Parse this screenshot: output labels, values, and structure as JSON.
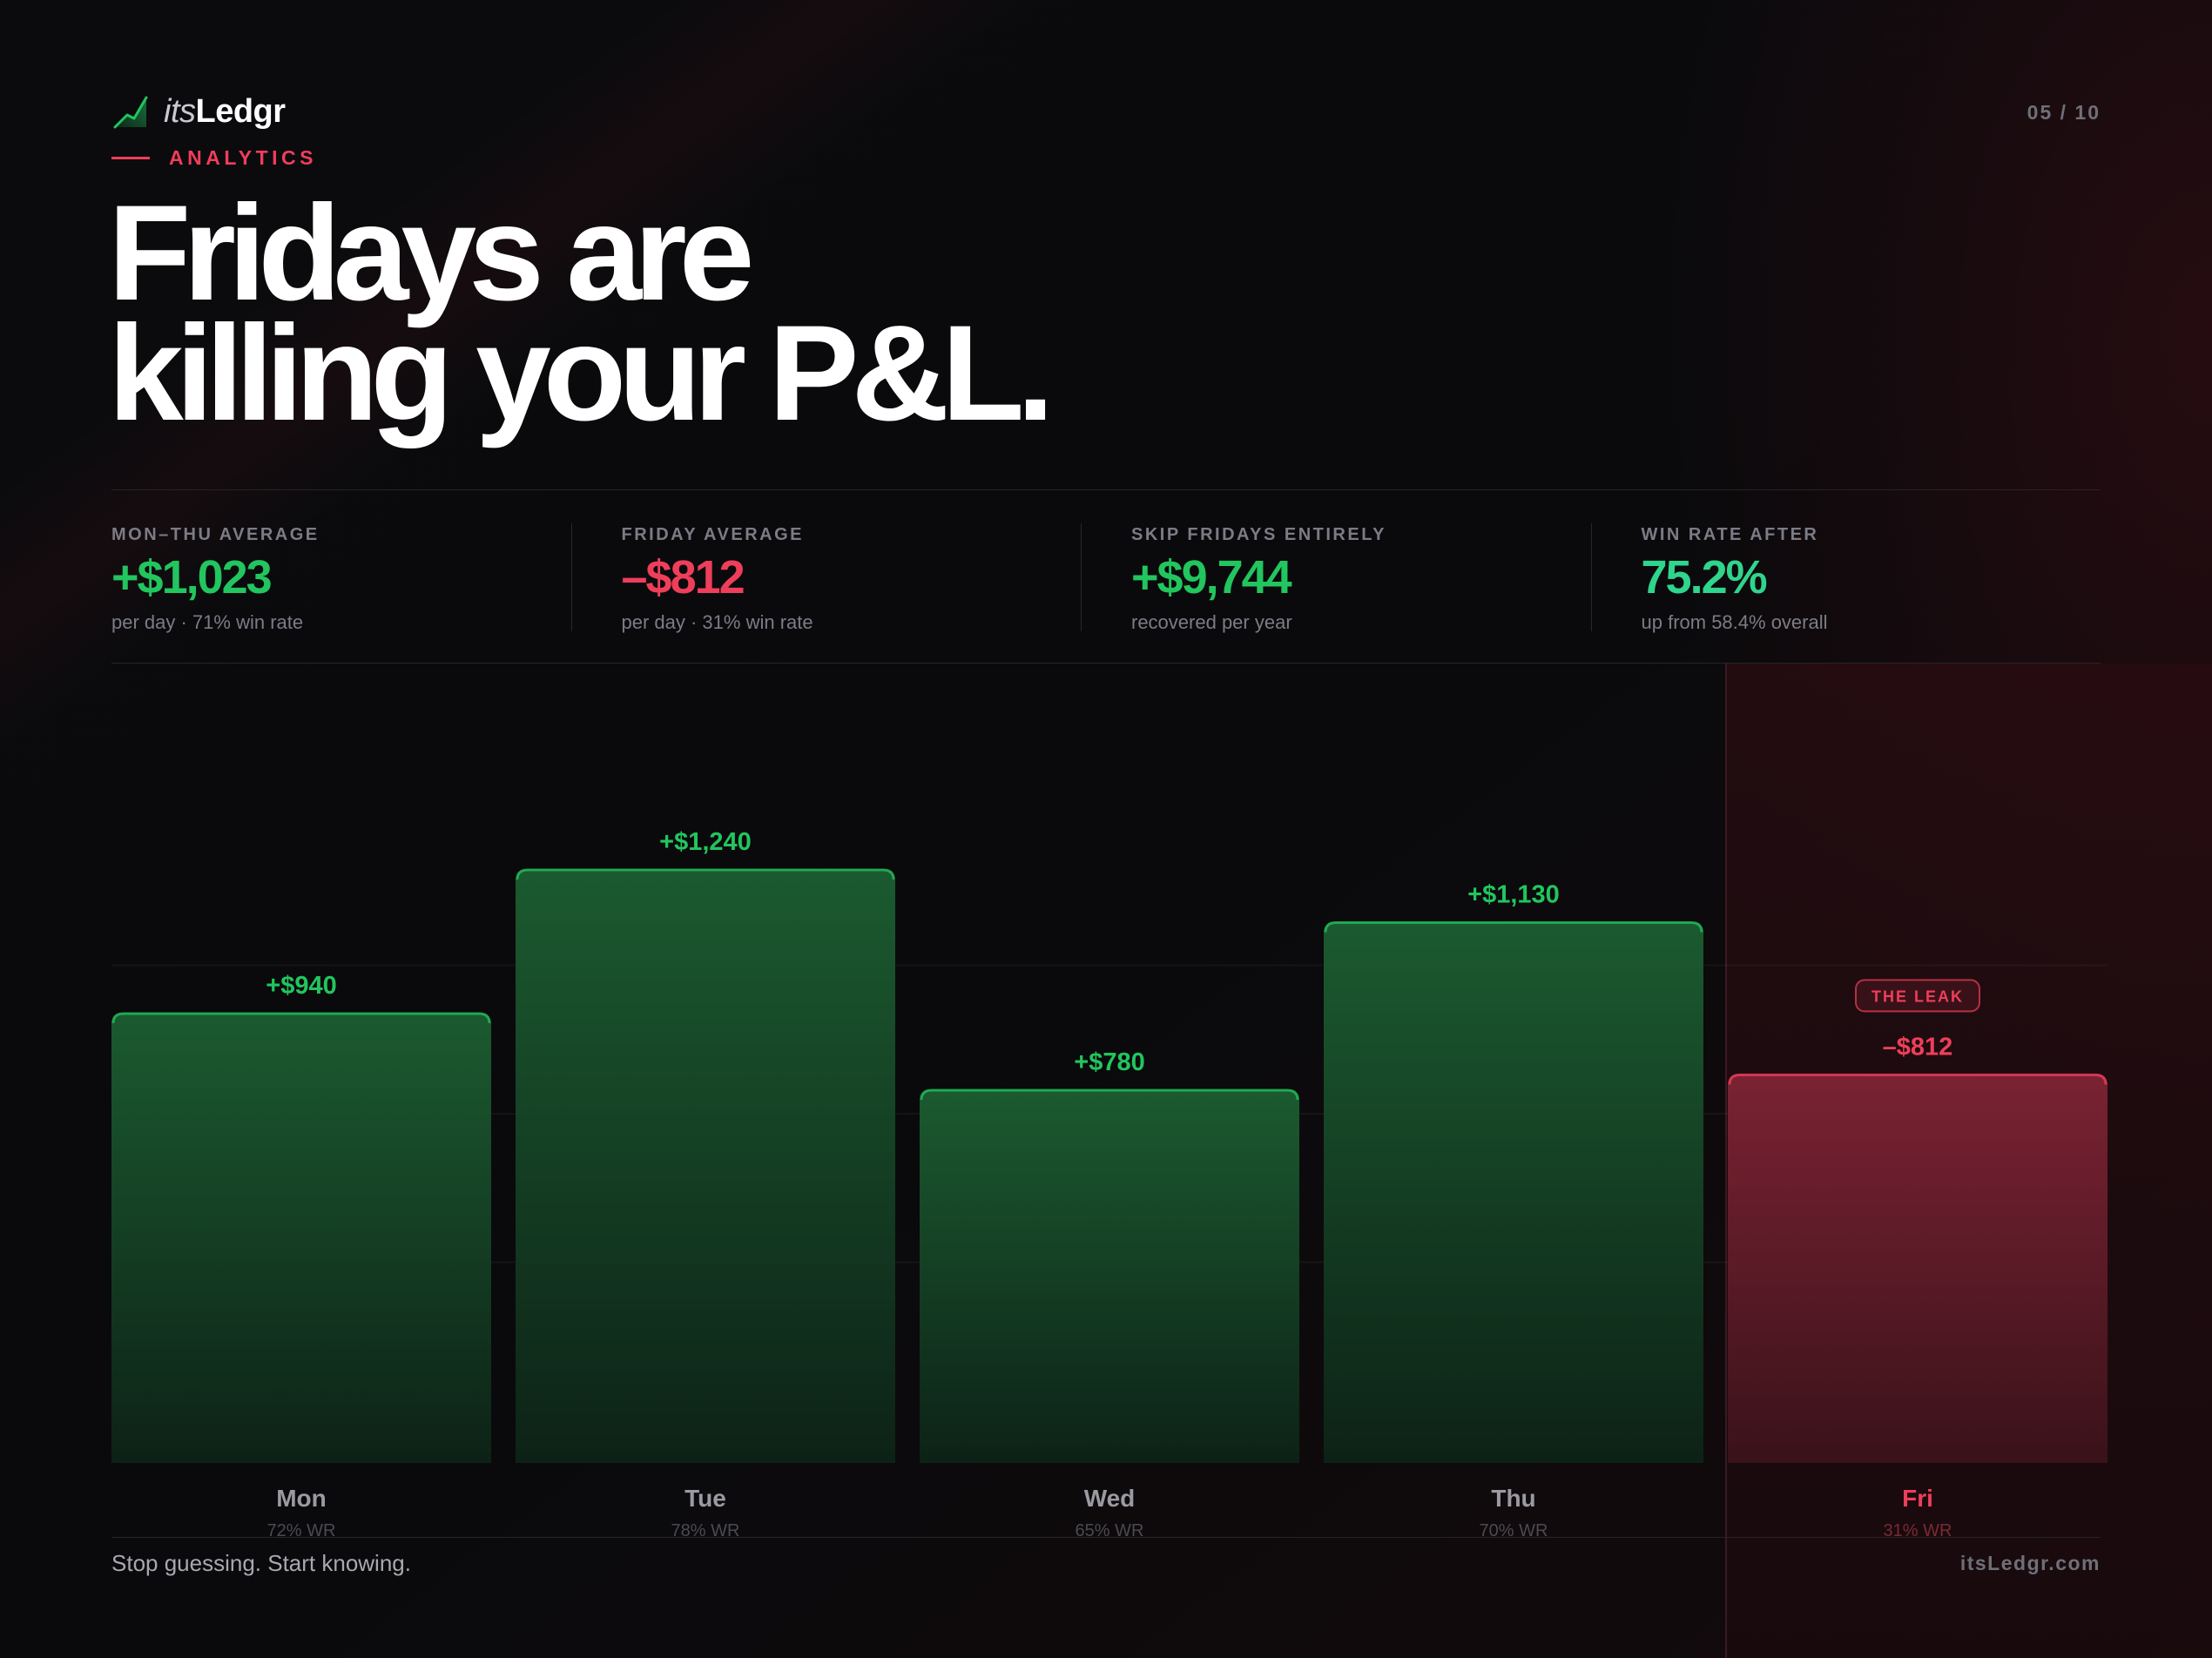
{
  "brand": {
    "prefix": "its",
    "name": "Ledgr",
    "accent_color": "#22c55e",
    "mark_icon": "trend-line-icon"
  },
  "page_number": "05 / 10",
  "kicker": "ANALYTICS",
  "headline": {
    "line1": "Fridays are",
    "line2": "killing your P&L."
  },
  "stats": [
    {
      "label": "MON–THU AVERAGE",
      "value": "+$1,023",
      "sub": "per day · 71% win rate",
      "color": "#22c55e"
    },
    {
      "label": "FRIDAY AVERAGE",
      "value": "–$812",
      "sub": "per day · 31% win rate",
      "color": "#ef3e5a"
    },
    {
      "label": "SKIP FRIDAYS ENTIRELY",
      "value": "+$9,744",
      "sub": "recovered per year",
      "color": "#22c55e"
    },
    {
      "label": "WIN RATE AFTER",
      "value": "75.2%",
      "sub": "up from 58.4% overall",
      "color": "#2fd58c"
    }
  ],
  "chart_data": {
    "type": "bar",
    "title": "",
    "xlabel": "",
    "ylabel": "",
    "categories": [
      "Mon",
      "Tue",
      "Wed",
      "Thu",
      "Fri"
    ],
    "values": [
      940,
      1240,
      780,
      1130,
      -812
    ],
    "value_labels": [
      "+$940",
      "+$1,240",
      "+$780",
      "+$1,130",
      "–$812"
    ],
    "win_rates": [
      "72% WR",
      "78% WR",
      "65% WR",
      "70% WR",
      "31% WR"
    ],
    "highlight_category": "Fri",
    "highlight_badge": "THE LEAK",
    "positive_color": "#22c55e",
    "negative_color": "#ef3e5a",
    "grid": true,
    "legend": "none"
  },
  "footer": {
    "tagline": "Stop guessing. Start knowing.",
    "site": "itsLedgr.com"
  }
}
